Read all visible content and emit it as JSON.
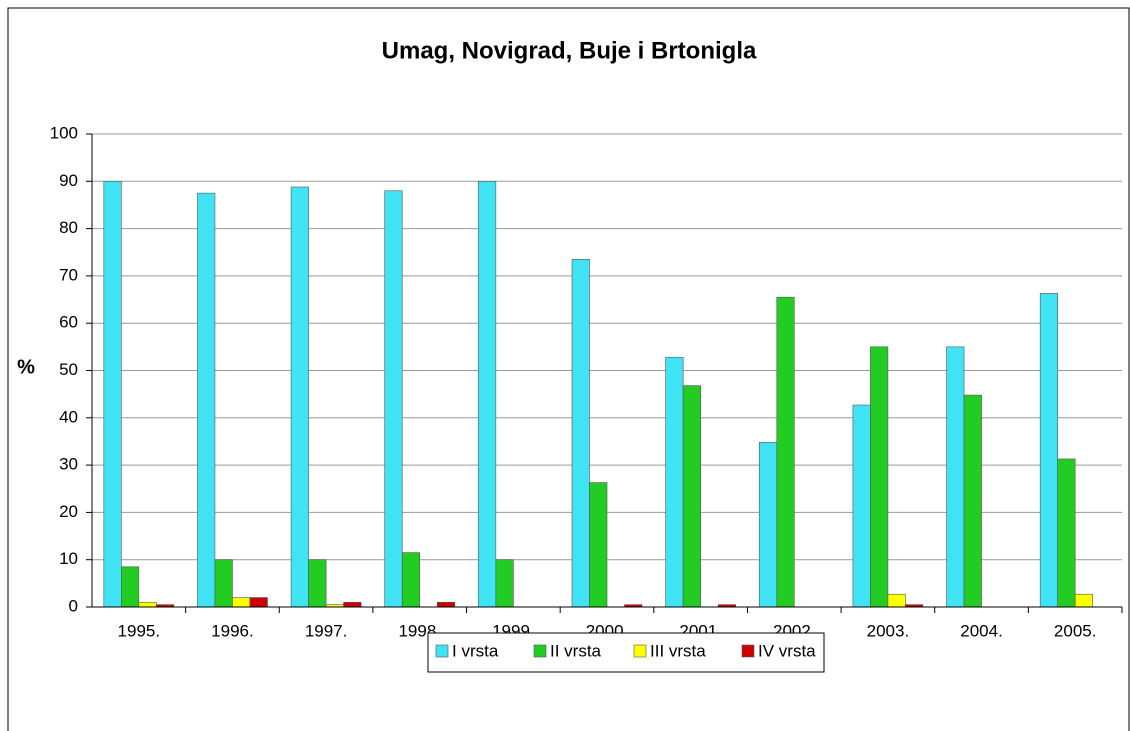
{
  "chart_data": {
    "type": "bar",
    "title": "Umag, Novigrad, Buje i Brtonigla",
    "ylabel": "%",
    "categories": [
      "1995.",
      "1996.",
      "1997.",
      "1998.",
      "1999.",
      "2000.",
      "2001.",
      "2002.",
      "2003.",
      "2004.",
      "2005."
    ],
    "series": [
      {
        "name": "I vrsta",
        "color": "#3fe3f4",
        "values": [
          90,
          87.5,
          88.8,
          88,
          90,
          73.5,
          52.8,
          34.8,
          42.7,
          55,
          66.3
        ]
      },
      {
        "name": "II vrsta",
        "color": "#22cc22",
        "values": [
          8.5,
          10,
          10,
          11.5,
          10,
          26.3,
          46.8,
          65.5,
          55,
          44.8,
          31.3
        ]
      },
      {
        "name": "III vrsta",
        "color": "#ffff00",
        "values": [
          1,
          2,
          0.5,
          0,
          0,
          0,
          0,
          0,
          2.7,
          0,
          2.7
        ]
      },
      {
        "name": "IV vrsta",
        "color": "#cc0000",
        "values": [
          0.5,
          2,
          1,
          1,
          0,
          0.5,
          0.5,
          0,
          0.5,
          0,
          0
        ]
      }
    ],
    "ylim": [
      0,
      100
    ],
    "yticks": [
      0,
      10,
      20,
      30,
      40,
      50,
      60,
      70,
      80,
      90,
      100
    ],
    "grid": true,
    "legend": "bottom"
  }
}
